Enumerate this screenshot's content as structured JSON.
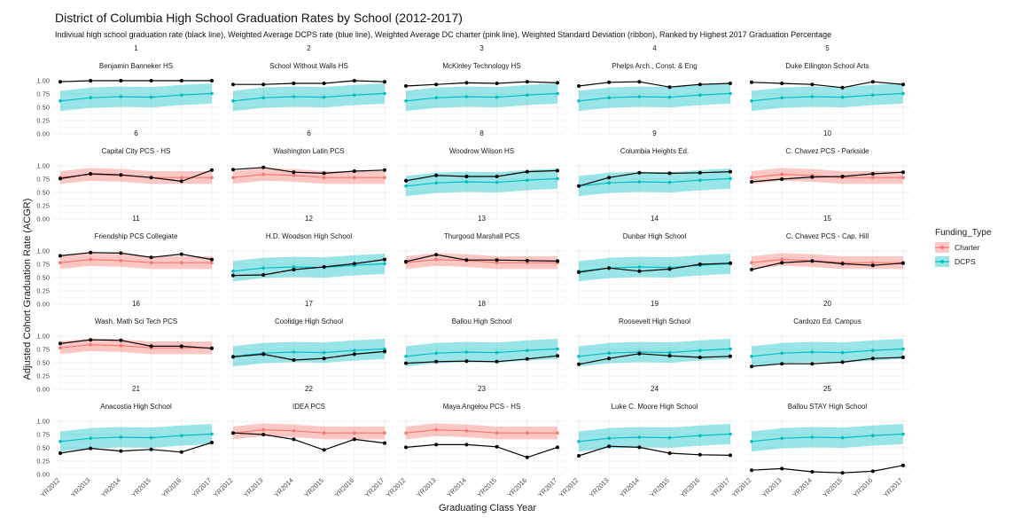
{
  "title": "District of Columbia High School Graduation Rates by School (2012-2017)",
  "subtitle": "Indiviual high school graduation rate (black line), Weighted Average DCPS rate (blue line), Weighted Average DC charter (pink line), Weighted Standard Deviation (ribbon), Ranked by Highest 2017 Graduation Percentage",
  "colors": {
    "charter_line": "#F8766D",
    "charter_ribbon": "#F8766D",
    "dcps_line": "#00BFC4",
    "dcps_ribbon": "#00BFC4",
    "school_line": "#000000",
    "grid": "#ebebeb"
  },
  "chart_data": {
    "type": "line",
    "xlabel": "Graduating Class Year",
    "ylabel": "Adjusted Cohort Graduation Rate (ACGR)",
    "x": [
      "YR2012",
      "YR2013",
      "YR2014",
      "YR2015",
      "YR2016",
      "YR2017"
    ],
    "y_ticks": [
      "0.00",
      "0.25",
      "0.50",
      "0.75",
      "1.00"
    ],
    "ylim": [
      0,
      1.05
    ],
    "legend": {
      "title": "Funding_Type",
      "position": "right",
      "entries": [
        {
          "label": "Charter",
          "color": "#F8766D"
        },
        {
          "label": "DCPS",
          "color": "#00BFC4"
        }
      ]
    },
    "averages": {
      "Charter": {
        "mean": [
          0.78,
          0.84,
          0.82,
          0.78,
          0.78,
          0.78
        ],
        "sd": [
          0.12,
          0.12,
          0.12,
          0.12,
          0.12,
          0.12
        ]
      },
      "DCPS": {
        "mean": [
          0.62,
          0.68,
          0.7,
          0.69,
          0.73,
          0.76
        ],
        "sd": [
          0.19,
          0.19,
          0.19,
          0.19,
          0.19,
          0.19
        ]
      }
    },
    "panels": [
      {
        "rank": "1",
        "school": "Benjamin Banneker HS",
        "type": "DCPS",
        "values": [
          0.98,
          1.0,
          1.0,
          1.0,
          1.0,
          1.0
        ]
      },
      {
        "rank": "2",
        "school": "School Without Walls HS",
        "type": "DCPS",
        "values": [
          0.93,
          0.93,
          0.95,
          0.95,
          1.0,
          0.98
        ]
      },
      {
        "rank": "3",
        "school": "McKinley Technology HS",
        "type": "DCPS",
        "values": [
          0.9,
          0.93,
          0.96,
          0.95,
          0.98,
          0.96
        ]
      },
      {
        "rank": "4",
        "school": "Phelps Arch., Const. & Eng",
        "type": "DCPS",
        "values": [
          0.9,
          0.97,
          0.98,
          0.88,
          0.93,
          0.95
        ]
      },
      {
        "rank": "5",
        "school": "Duke Ellington School Arts",
        "type": "DCPS",
        "values": [
          0.97,
          0.95,
          0.93,
          0.87,
          0.98,
          0.93
        ]
      },
      {
        "rank": "6",
        "school": "Capital City PCS - HS",
        "type": "Charter",
        "values": [
          0.76,
          0.85,
          0.83,
          0.78,
          0.71,
          0.92
        ]
      },
      {
        "rank": "6",
        "school": "Washington Latin PCS",
        "type": "Charter",
        "values": [
          0.93,
          0.97,
          0.88,
          0.86,
          0.9,
          0.92
        ]
      },
      {
        "rank": "8",
        "school": "Woodrow Wilson HS",
        "type": "DCPS",
        "values": [
          0.72,
          0.82,
          0.8,
          0.8,
          0.89,
          0.91
        ]
      },
      {
        "rank": "9",
        "school": "Columbia Heights Ed.",
        "type": "DCPS",
        "values": [
          0.62,
          0.78,
          0.87,
          0.86,
          0.87,
          0.89
        ]
      },
      {
        "rank": "10",
        "school": "C. Chavez PCS - Parkside",
        "type": "Charter",
        "values": [
          0.7,
          0.75,
          0.79,
          0.8,
          0.85,
          0.88
        ]
      },
      {
        "rank": "11",
        "school": "Friendship PCS Collegiate",
        "type": "Charter",
        "values": [
          0.91,
          0.97,
          0.96,
          0.88,
          0.94,
          0.84
        ]
      },
      {
        "rank": "12",
        "school": "H.D. Woodson High School",
        "type": "DCPS",
        "values": [
          0.54,
          0.55,
          0.65,
          0.7,
          0.76,
          0.84
        ]
      },
      {
        "rank": "13",
        "school": "Thurgood Marshall PCS",
        "type": "Charter",
        "values": [
          0.8,
          0.93,
          0.83,
          0.83,
          0.82,
          0.81
        ]
      },
      {
        "rank": "14",
        "school": "Dunbar High School",
        "type": "DCPS",
        "values": [
          0.6,
          0.68,
          0.62,
          0.66,
          0.75,
          0.77
        ]
      },
      {
        "rank": "15",
        "school": "C. Chavez PCS - Cap. Hill",
        "type": "Charter",
        "values": [
          0.65,
          0.78,
          0.81,
          0.76,
          0.73,
          0.77
        ]
      },
      {
        "rank": "16",
        "school": "Wash. Math Sci Tech PCS",
        "type": "Charter",
        "values": [
          0.86,
          0.93,
          0.92,
          0.81,
          0.81,
          0.77
        ]
      },
      {
        "rank": "17",
        "school": "Coolidge High School",
        "type": "DCPS",
        "values": [
          0.61,
          0.66,
          0.55,
          0.58,
          0.66,
          0.71
        ]
      },
      {
        "rank": "18",
        "school": "Ballou High School",
        "type": "DCPS",
        "values": [
          0.49,
          0.52,
          0.53,
          0.52,
          0.57,
          0.63
        ]
      },
      {
        "rank": "19",
        "school": "Roosevelt High School",
        "type": "DCPS",
        "values": [
          0.47,
          0.58,
          0.67,
          0.63,
          0.6,
          0.62
        ]
      },
      {
        "rank": "20",
        "school": "Cardozo Ed. Campus",
        "type": "DCPS",
        "values": [
          0.43,
          0.48,
          0.48,
          0.51,
          0.58,
          0.6
        ]
      },
      {
        "rank": "21",
        "school": "Anacostia High School",
        "type": "DCPS",
        "values": [
          0.4,
          0.49,
          0.44,
          0.47,
          0.42,
          0.6
        ]
      },
      {
        "rank": "22",
        "school": "IDEA PCS",
        "type": "Charter",
        "values": [
          0.78,
          0.75,
          0.66,
          0.46,
          0.66,
          0.59
        ]
      },
      {
        "rank": "23",
        "school": "Maya Angelou PCS - HS",
        "type": "Charter",
        "values": [
          0.51,
          0.56,
          0.56,
          0.52,
          0.32,
          0.51
        ]
      },
      {
        "rank": "24",
        "school": "Luke C. Moore High School",
        "type": "DCPS",
        "values": [
          0.35,
          0.53,
          0.51,
          0.4,
          0.37,
          0.36
        ]
      },
      {
        "rank": "25",
        "school": "Ballou STAY High School",
        "type": "DCPS",
        "values": [
          0.08,
          0.11,
          0.05,
          0.03,
          0.06,
          0.17
        ]
      }
    ]
  }
}
